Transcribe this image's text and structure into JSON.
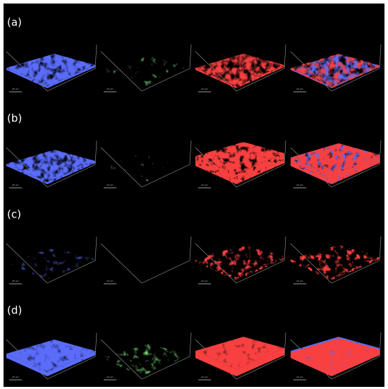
{
  "panels": [
    {
      "label": "(a)"
    },
    {
      "label": "(b)"
    },
    {
      "label": "(c)"
    },
    {
      "label": "(d)"
    }
  ],
  "scale_bar": "20 µm"
}
